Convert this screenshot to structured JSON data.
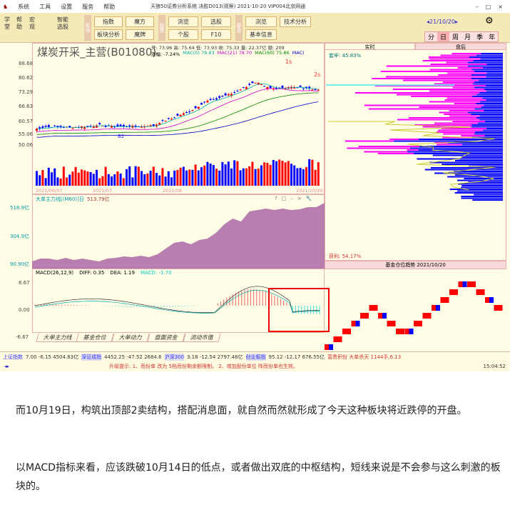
{
  "titlebar": {
    "menus": [
      "系统",
      "工具",
      "设置",
      "服务",
      "帮助"
    ],
    "title": "天狼50证券分析系统 决胜D013(观察) 2021-10-20 VIP004北京网通",
    "controls": [
      "–",
      "□",
      "×"
    ]
  },
  "toolbar": {
    "vertical": [
      "学堂",
      "帮助",
      "宏观",
      "智能选股"
    ],
    "groups": [
      {
        "label": "板块",
        "buttons": [
          "指数",
          "魔方",
          "板块分析",
          "魔牌"
        ]
      },
      {
        "label": "股票",
        "buttons": [
          "浏览",
          "选股",
          "个股",
          "F10"
        ]
      },
      {
        "label": "基金",
        "buttons": [
          "浏览",
          "技术分析",
          "基本信息"
        ]
      }
    ],
    "date_nav": "◂21/10/20▸",
    "periods": [
      "分",
      "日",
      "周",
      "月",
      "季",
      "年"
    ],
    "active_period": "日"
  },
  "kline": {
    "name": "煤炭开采_主营(B01080)",
    "ohlc": "开: 73.96 高: 75.64 低: 73.93 收: 75.33 量: 22.37亿 额: 209",
    "ma": [
      "涨幅: -7.24%",
      "MAC(5) 78.83",
      "MAC(21) 78.70",
      "MAC(60) 75.86",
      "MAC("
    ],
    "y_ticks": [
      "88.68",
      "80.62",
      "73.29",
      "66.63",
      "60.57",
      "55.06",
      "50.06"
    ],
    "annotations": [
      "1s",
      "2s",
      "B2"
    ],
    "dates": [
      "2021/06/07",
      "2021/07",
      "2021/08",
      "2021/10/20"
    ]
  },
  "indicator": {
    "title": "大单主力线[(M60)]日",
    "value": "513.79亿",
    "y_ticks": [
      "518.9亿",
      "304.9亿",
      "90.90亿"
    ],
    "icons": [
      "?",
      "□",
      "–",
      "×",
      "🔧"
    ]
  },
  "macd": {
    "title": "MACD(26,12,9)",
    "diff": "DIFF: 0.35",
    "dea": "DEA: 1.19",
    "macd": "MACD: -1.70",
    "y_ticks": [
      "6.67",
      "0.00",
      "-6.67"
    ]
  },
  "bottom_tabs": [
    "大单主力线",
    "基金仓位",
    "大单动力",
    "盘面资金",
    "流动市值"
  ],
  "right": {
    "tabs": [
      "实时",
      "盘后"
    ],
    "top_label": "套牢: 45.83%",
    "bottom_label": "获利: 54.17%",
    "trend_title": "基金仓位趋势 2021/10/20"
  },
  "status": {
    "items": [
      {
        "name": "上证指数",
        "values": "7.00  -6.15  4504.83亿"
      },
      {
        "name": "深证成指",
        "values": "4452.25  -47.52  2684.6"
      },
      {
        "name": "沪深300",
        "values": "3.18  -12.54  2797.48亿"
      },
      {
        "name": "创业板指",
        "values": "95.12  -12.17  676.55亿"
      }
    ],
    "extra": "富贵积份 大单杀天 1144手,6.13"
  },
  "hint": {
    "text": "升级提示: 1、而份单 改为 5档而份剩余额限制。 2、增加股份单位 阵而份单也生效。",
    "time": "15:04:52"
  },
  "article": {
    "p1": "而10月19日，构筑出顶部2卖结构，搭配消息面，就自然而然就形成了今天这种板块将近跌停的开盘。",
    "p2": "以MACD指标来看，应该跌破10月14日的低点，或者做出双底的中枢结构，短线来说是不会参与这么刺激的板块的。"
  },
  "colors": {
    "up": "#ff0000",
    "down": "#0000ff",
    "indicator_fill": "#b070a8",
    "profile_magenta": "#ff00ff",
    "profile_blue": "#0000ff"
  }
}
